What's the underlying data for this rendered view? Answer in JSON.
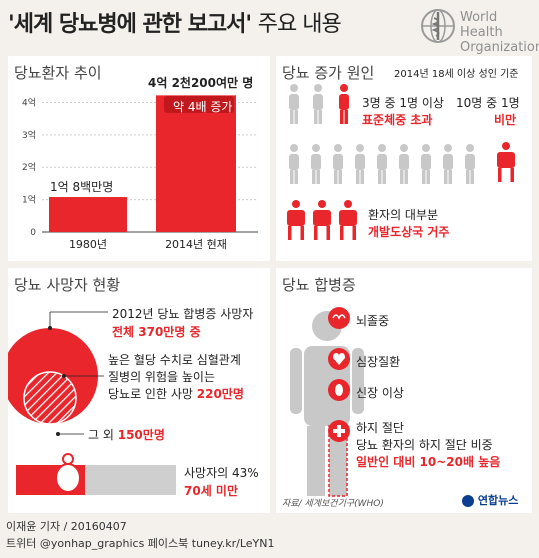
{
  "header": {
    "title": "'세계 당뇨병에 관한 보고서'",
    "subtitle": "주요 내용",
    "org_line1": "World Health",
    "org_line2": "Organization",
    "org_logo": "who-emblem-icon"
  },
  "trend": {
    "title": "당뇨환자 추이",
    "top_value_label": "4억 2천200여만 명",
    "growth_label": "약 4배 증가",
    "bar1_label": "1억 8백만명",
    "chart_data": {
      "type": "bar",
      "categories": [
        "1980년",
        "2014년 현재"
      ],
      "values": [
        1.08,
        4.22
      ],
      "ylim": [
        0,
        4.2
      ],
      "ytick_labels": [
        "4억",
        "3억",
        "2억",
        "1억",
        "0"
      ],
      "colors": [
        "#e8262b",
        "#e8262b"
      ]
    }
  },
  "causes": {
    "title": "당뇨 증가 원인",
    "basis": "2014년 18세 이상 성인 기준",
    "stat1_line1": "3명 중 1명 이상",
    "stat1_line2": "표준체중 초과",
    "stat2_line1": "10명 중 1명",
    "stat2_line2": "비만",
    "stat3_line1": "환자의 대부분",
    "stat3_line2": "개발도상국 거주",
    "stat1_fraction": 0.333,
    "stat2_fraction": 0.1
  },
  "deaths": {
    "title": "당뇨 사망자 현황",
    "total_line1": "2012년 당뇨 합병증 사망자",
    "total_line2": "전체 370만명 중",
    "high_glucose_line1": "높은 혈당 수치로 심혈관계",
    "high_glucose_line2": "질병의 위험을 높이는",
    "high_glucose_line3": "당뇨로 인한 사망",
    "high_glucose_value": "220만명",
    "other_prefix": "그 외",
    "other_value": "150만명",
    "under70_line1": "사망자의 43%",
    "under70_line2": "70세 미만",
    "under70_fraction": 0.43
  },
  "complications": {
    "title": "당뇨 합병증",
    "items": [
      {
        "label": "뇌졸중",
        "icon": "brain-icon"
      },
      {
        "label": "심장질환",
        "icon": "heart-icon"
      },
      {
        "label": "신장 이상",
        "icon": "kidney-icon"
      },
      {
        "label": "하지 절단",
        "icon": "medical-cross-icon"
      }
    ],
    "amputation_line1": "당뇨 환자의 하지 절단 비중",
    "amputation_line2": "일반인 대비 10~20배 높음"
  },
  "source": "자료/ 세계보건기구(WHO)",
  "agency": "연합뉴스",
  "footer": {
    "line1": "이재윤 기자 / 20160407",
    "line2": "트위터 @yonhap_graphics  페이스북 tuney.kr/LeYN1"
  },
  "colors": {
    "accent": "#e8262b",
    "background": "#f4f1ec",
    "figure_grey": "#c8c8c8"
  }
}
